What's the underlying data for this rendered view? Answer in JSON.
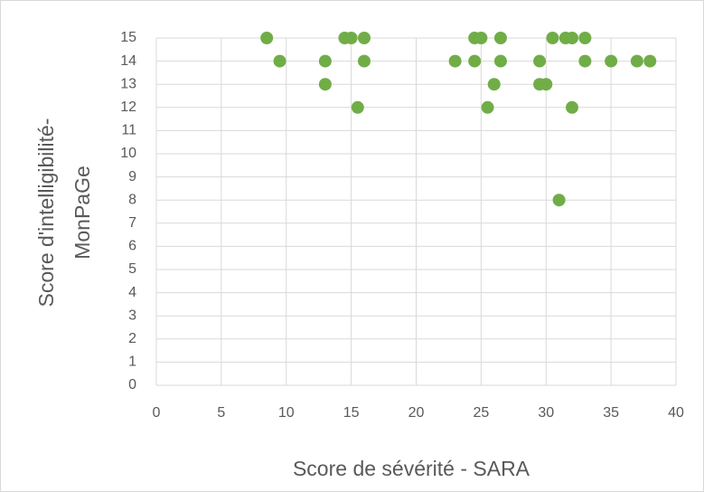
{
  "chart_data": {
    "type": "scatter",
    "xlabel": "Score de sévérité - SARA",
    "ylabel": [
      "Score d'intelligibilité-",
      "MonPaGe"
    ],
    "color": "#70ad47",
    "grid": true,
    "xlim": [
      0,
      40
    ],
    "xticks": [
      0,
      5,
      10,
      15,
      20,
      25,
      30,
      35,
      40
    ],
    "ylim": [
      0,
      15
    ],
    "yticks": [
      0,
      1,
      2,
      3,
      4,
      5,
      6,
      7,
      8,
      9,
      10,
      11,
      12,
      13,
      14,
      15
    ],
    "x": [
      8.5,
      9.5,
      13,
      13,
      14.5,
      15,
      16,
      16,
      15.5,
      23,
      24.5,
      25,
      24.5,
      26.5,
      26.5,
      26,
      25.5,
      29.5,
      29.5,
      30,
      30.5,
      31.5,
      32,
      33,
      33,
      32,
      31,
      35,
      37,
      38
    ],
    "values": [
      15,
      14,
      14,
      13,
      15,
      15,
      15,
      14,
      12,
      14,
      15,
      15,
      14,
      15,
      14,
      13,
      12,
      14,
      13,
      13,
      15,
      15,
      15,
      15,
      14,
      12,
      8,
      14,
      14,
      14
    ]
  }
}
